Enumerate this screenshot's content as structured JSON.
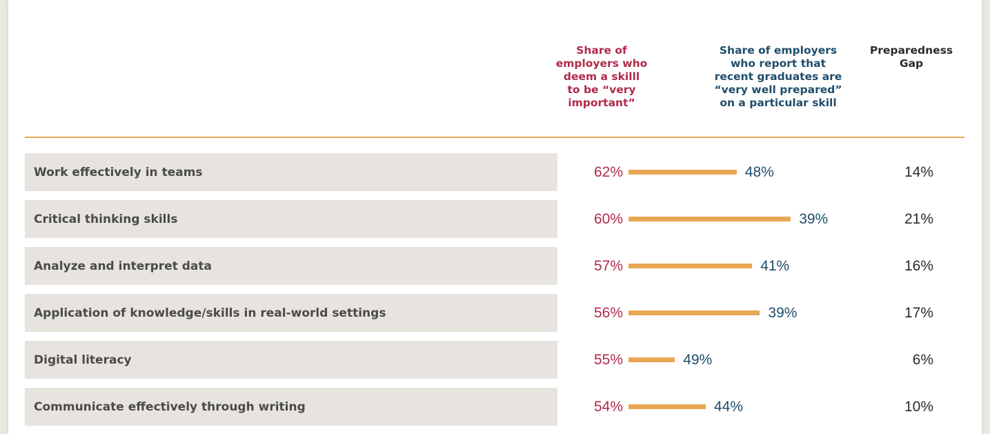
{
  "colors": {
    "important": "#b02a4a",
    "prepared": "#1e4d6b",
    "bar": "#e8a754",
    "gap": "#2b2b2b"
  },
  "headers": {
    "important": "Share of\nemployers who\ndeem a skilll\nto be “very\nimportant”",
    "prepared": "Share of employers\nwho report that\nrecent graduates are\n“very well prepared”\non a particular skill",
    "gap": "Preparedness\nGap"
  },
  "chart_data": {
    "type": "table",
    "columns": [
      "Share of employers who deem a skilll to be “very important”",
      "Share of employers who report that recent graduates are “very well prepared” on a particular skill",
      "Preparedness Gap"
    ],
    "rows": [
      {
        "skill": "Work effectively in teams",
        "important": "62%",
        "prepared": "48%",
        "gap": "14%",
        "gap_value": 14
      },
      {
        "skill": "Critical thinking skills",
        "important": "60%",
        "prepared": "39%",
        "gap": "21%",
        "gap_value": 21
      },
      {
        "skill": "Analyze and interpret data",
        "important": "57%",
        "prepared": "41%",
        "gap": "16%",
        "gap_value": 16
      },
      {
        "skill": "Application of knowledge/skills in real-world settings",
        "important": "56%",
        "prepared": "39%",
        "gap": "17%",
        "gap_value": 17
      },
      {
        "skill": "Digital literacy",
        "important": "55%",
        "prepared": "49%",
        "gap": "6%",
        "gap_value": 6
      },
      {
        "skill": "Communicate effectively through writing",
        "important": "54%",
        "prepared": "44%",
        "gap": "10%",
        "gap_value": 10
      }
    ]
  }
}
